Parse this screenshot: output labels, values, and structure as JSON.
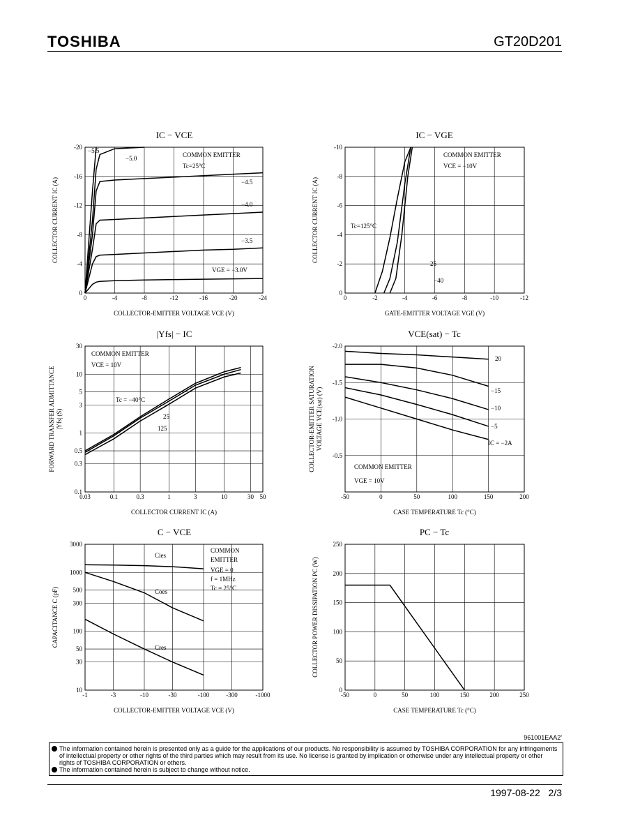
{
  "header": {
    "brand": "TOSHIBA",
    "part": "GT20D201"
  },
  "chart_data": [
    {
      "type": "line",
      "title": "IC − VCE",
      "x_label": "COLLECTOR-EMITTER VOLTAGE  VCE  (V)",
      "y_label": [
        "COLLECTOR CURRENT  IC  (A)"
      ],
      "annotations": [
        "COMMON EMITTER",
        "Tc=25°C"
      ],
      "xlim": [
        0,
        -24
      ],
      "xticks": [
        0,
        -4,
        -8,
        -12,
        -16,
        -20,
        -24
      ],
      "ylim": [
        0,
        -20
      ],
      "yticks": [
        0,
        -4,
        -8,
        -12,
        -16,
        -20
      ],
      "grid": true,
      "x": [
        0,
        -1,
        -1.5,
        -2,
        -4,
        -8,
        -12,
        -16,
        -20,
        -24
      ],
      "series": [
        {
          "name": "−5.5",
          "color": "#000000",
          "values": [
            0,
            -14,
            -20,
            null,
            null,
            null,
            null,
            null,
            null,
            null
          ]
        },
        {
          "name": "−5.0",
          "color": "#000000",
          "values": [
            0,
            -10,
            -17,
            -19,
            -19.8,
            -20,
            null,
            null,
            null,
            null
          ]
        },
        {
          "name": "−4.5",
          "color": "#000000",
          "values": [
            0,
            -8,
            -14,
            -15.3,
            -15.5,
            -15.7,
            -15.9,
            -16.1,
            -16.3,
            -16.5
          ]
        },
        {
          "name": "−4.0",
          "color": "#000000",
          "values": [
            0,
            -6,
            -9.5,
            -10,
            -10.1,
            -10.3,
            -10.5,
            -10.7,
            -10.9,
            -11.1
          ]
        },
        {
          "name": "−3.5",
          "color": "#000000",
          "values": [
            0,
            -4,
            -5,
            -5.2,
            -5.3,
            -5.5,
            -5.7,
            -5.9,
            -6.0,
            -6.2
          ]
        },
        {
          "name": "VGE = −3.0V",
          "color": "#000000",
          "values": [
            0,
            -1.2,
            -1.5,
            -1.6,
            -1.7,
            -1.8,
            -1.85,
            -1.9,
            -1.95,
            -2.0
          ]
        }
      ]
    },
    {
      "type": "line",
      "title": "IC − VGE",
      "x_label": "GATE-EMITTER VOLTAGE  VGE  (V)",
      "y_label": [
        "COLLECTOR CURRENT  IC  (A)"
      ],
      "annotations": [
        "COMMON EMITTER",
        "VCE = −10V"
      ],
      "xlim": [
        0,
        -12
      ],
      "xticks": [
        0,
        -2,
        -4,
        -6,
        -8,
        -10,
        -12
      ],
      "ylim": [
        0,
        -10
      ],
      "yticks": [
        0,
        -2,
        -4,
        -6,
        -8,
        -10
      ],
      "grid": true,
      "series": [
        {
          "name": "Tc=125°C",
          "color": "#000000",
          "x": [
            -2,
            -2.5,
            -3,
            -3.5,
            -4,
            -4.4
          ],
          "values": [
            0,
            -1.5,
            -3.8,
            -6.5,
            -9,
            -10
          ]
        },
        {
          "name": "25",
          "color": "#000000",
          "x": [
            -2.6,
            -3,
            -3.5,
            -4,
            -4.4
          ],
          "values": [
            0,
            -1,
            -3.5,
            -7.5,
            -10
          ]
        },
        {
          "name": "−40",
          "color": "#000000",
          "x": [
            -3.0,
            -3.4,
            -3.8,
            -4.2,
            -4.5
          ],
          "values": [
            0,
            -1,
            -4,
            -8,
            -10
          ]
        }
      ]
    },
    {
      "type": "line",
      "title": "|Yfs| − IC",
      "x_label": "COLLECTOR CURRENT  IC  (A)",
      "y_label": [
        "FORWARD TRANSFER ADMITTANCE",
        "|Yfs|  (S)"
      ],
      "annotations": [
        "COMMON EMITTER",
        "VCE = 10V"
      ],
      "xlog": true,
      "ylog": true,
      "xlim": [
        0.03,
        50
      ],
      "xticks": [
        0.03,
        0.1,
        0.3,
        1,
        3,
        10,
        30,
        50
      ],
      "ylim": [
        0.1,
        30
      ],
      "yticks": [
        0.1,
        0.3,
        0.5,
        1,
        3,
        5,
        10,
        30
      ],
      "grid": true,
      "x": [
        0.03,
        0.1,
        0.3,
        1,
        3,
        10,
        20
      ],
      "series": [
        {
          "name": "Tc = −40°C",
          "color": "#000000",
          "values": [
            0.5,
            0.95,
            1.9,
            3.8,
            7,
            11,
            13
          ]
        },
        {
          "name": "25",
          "color": "#000000",
          "values": [
            0.47,
            0.9,
            1.8,
            3.5,
            6.5,
            10,
            12
          ]
        },
        {
          "name": "125",
          "color": "#000000",
          "values": [
            0.43,
            0.8,
            1.6,
            3.1,
            5.8,
            9,
            10.5
          ]
        }
      ]
    },
    {
      "type": "line",
      "title": "VCE(sat) − Tc",
      "x_label": "CASE TEMPERATURE  Tc  (°C)",
      "y_label": [
        "COLLECTOR-EMITTER SATURATION",
        "VOLTAGE  VCE(sat)  (V)"
      ],
      "annotations": [
        "COMMON EMITTER",
        "VGE = 10V"
      ],
      "xlim": [
        -50,
        200
      ],
      "xticks": [
        -50,
        0,
        50,
        100,
        150,
        200
      ],
      "ylim": [
        0,
        -2
      ],
      "yticks": [
        -0.5,
        {
          "value": -1,
          "label": "-1.0"
        },
        -1.5,
        {
          "value": -2,
          "label": "-2.0"
        }
      ],
      "grid": true,
      "x": [
        -50,
        0,
        50,
        100,
        150
      ],
      "series": [
        {
          "name": "20",
          "color": "#000000",
          "values": [
            -1.93,
            -1.9,
            -1.88,
            -1.85,
            -1.82
          ]
        },
        {
          "name": "−15",
          "color": "#000000",
          "values": [
            -1.75,
            -1.75,
            -1.7,
            -1.6,
            -1.45
          ]
        },
        {
          "name": "−10",
          "color": "#000000",
          "values": [
            -1.58,
            -1.5,
            -1.4,
            -1.28,
            -1.13
          ]
        },
        {
          "name": "−5",
          "color": "#000000",
          "values": [
            -1.43,
            -1.33,
            -1.2,
            -1.06,
            -0.9
          ]
        },
        {
          "name": "IC = −2A",
          "color": "#000000",
          "values": [
            -1.3,
            -1.15,
            -1.0,
            -0.85,
            -0.72
          ]
        }
      ]
    },
    {
      "type": "line",
      "title": "C − VCE",
      "x_label": "COLLECTOR-EMITTER VOLTAGE  VCE  (V)",
      "y_label": [
        "CAPACITANCE  C  (pF)"
      ],
      "annotations": [
        "COMMON",
        "EMITTER",
        "VGE = 0",
        "f = 1MHz",
        "Tc = 25°C"
      ],
      "xlog": true,
      "ylog": true,
      "xlim": [
        -1,
        -1000
      ],
      "xticks": [
        -1,
        -3,
        -10,
        -30,
        -100,
        -300,
        -1000
      ],
      "ylim": [
        10,
        3000
      ],
      "yticks": [
        10,
        30,
        50,
        100,
        300,
        500,
        1000,
        3000
      ],
      "grid": true,
      "x": [
        -1,
        -3,
        -10,
        -30,
        -100
      ],
      "series": [
        {
          "name": "Cies",
          "color": "#000000",
          "values": [
            1350,
            1330,
            1300,
            1250,
            1150
          ]
        },
        {
          "name": "Coes",
          "color": "#000000",
          "values": [
            1000,
            700,
            450,
            250,
            150
          ]
        },
        {
          "name": "Cres",
          "color": "#000000",
          "values": [
            160,
            90,
            50,
            30,
            18
          ]
        }
      ]
    },
    {
      "type": "line",
      "title": "PC − Tc",
      "x_label": "CASE TEMPERATURE  Tc  (°C)",
      "y_label": [
        "COLLECTOR POWER DISSIPATION  PC  (W)"
      ],
      "annotations": [],
      "xlim": [
        -50,
        250
      ],
      "xticks": [
        -50,
        0,
        50,
        100,
        150,
        200,
        250
      ],
      "ylim": [
        0,
        250
      ],
      "yticks": [
        0,
        50,
        100,
        150,
        200,
        250
      ],
      "grid": true,
      "x": [
        -50,
        25,
        150
      ],
      "series": [
        {
          "name": "PC",
          "color": "#000000",
          "values": [
            180,
            180,
            0
          ]
        }
      ]
    }
  ],
  "footer": {
    "code": "961001EAA2'",
    "notes": [
      "The information contained herein is presented only as a guide for the applications of our products. No responsibility is assumed by TOSHIBA CORPORATION for any infringements of intellectual property or other rights of the third parties which may result from its use. No license is granted by implication or otherwise under any intellectual property or other rights of TOSHIBA CORPORATION or others.",
      "The information contained herein is subject to change without notice."
    ],
    "date": "1997-08-22",
    "page": "2/3"
  }
}
